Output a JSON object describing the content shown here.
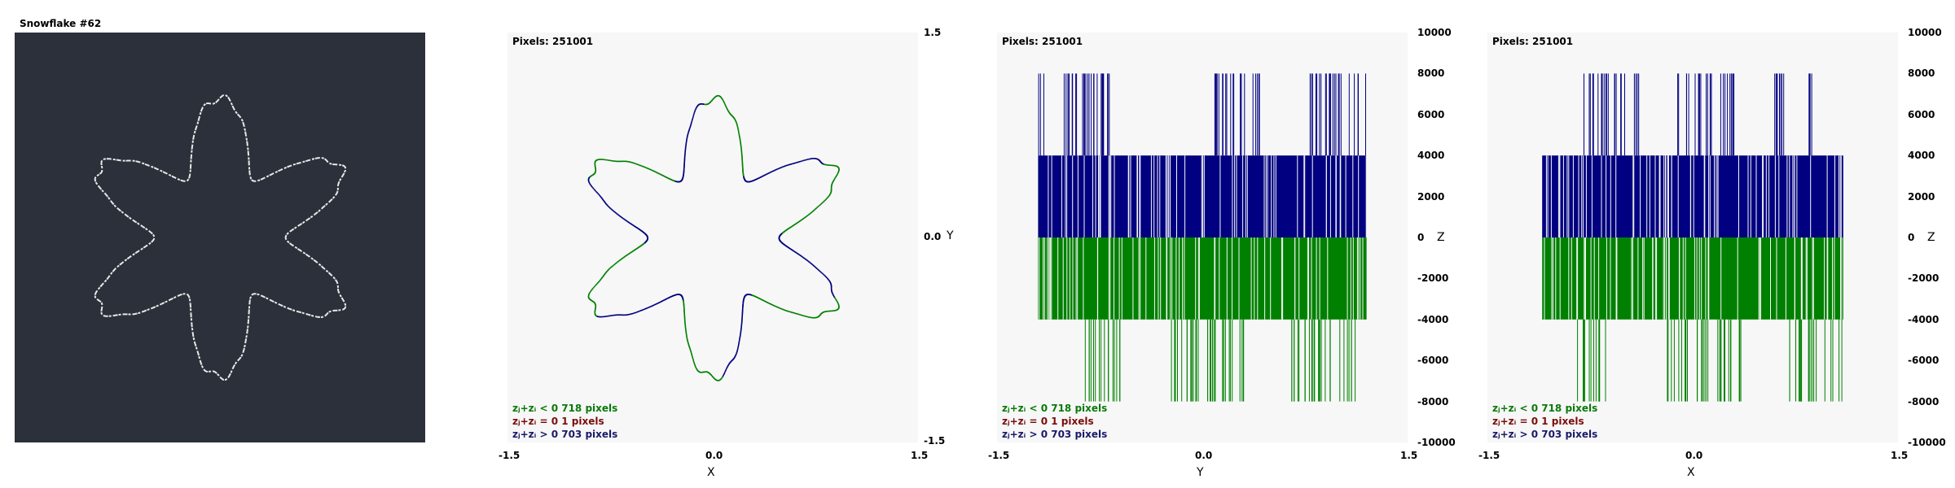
{
  "title": "Snowflake #62",
  "colors": {
    "dark_bg": "#2b303a",
    "plot_bg": "#f7f7f7",
    "positive": "#000080",
    "negative": "#008000",
    "curve_light": "#e8e8e8"
  },
  "plots": [
    {
      "id": "xy",
      "pixels_label": "Pixels: 251001",
      "xlabel": "X",
      "x_ticks": [
        "-1.5",
        "0.0",
        "1.5"
      ],
      "y_ticks": [
        "1.5",
        "0.0",
        "-1.5"
      ],
      "y_axis_name": "Y"
    },
    {
      "id": "yz",
      "pixels_label": "Pixels: 251001",
      "xlabel": "Y",
      "x_ticks": [
        "-1.5",
        "0.0",
        "1.5"
      ],
      "z_ticks": [
        "10000",
        "8000",
        "6000",
        "4000",
        "2000",
        "0",
        "-2000",
        "-4000",
        "-6000",
        "-8000",
        "-10000"
      ],
      "z_axis_name": "Z"
    },
    {
      "id": "xz",
      "pixels_label": "Pixels: 251001",
      "xlabel": "X",
      "x_ticks": [
        "-1.5",
        "0.0",
        "1.5"
      ],
      "z_ticks": [
        "10000",
        "8000",
        "6000",
        "4000",
        "2000",
        "0",
        "-2000",
        "-4000",
        "-6000",
        "-8000",
        "-10000"
      ],
      "z_axis_name": "Z"
    }
  ],
  "legend": {
    "neg": "zⱼ+zᵢ < 0  718 pixels",
    "zero": "zⱼ+zᵢ = 0  1 pixels",
    "pos": "zⱼ+zᵢ > 0  703 pixels"
  },
  "chart_data": {
    "type": "scatter",
    "title": "Snowflake #62",
    "pixels_total": 251001,
    "counts": {
      "negative": 718,
      "zero": 1,
      "positive": 703
    },
    "xy_range": [
      -1.5,
      1.5
    ],
    "z_range": [
      -10000,
      10000
    ],
    "curve": {
      "symmetry": 6,
      "base_radius": 1.0,
      "modulation": 0.36
    },
    "z_levels": {
      "positive": [
        4000,
        8000
      ],
      "negative": [
        -4000,
        -8000
      ]
    },
    "xz_bands": {
      "x_extent": [
        -1.1,
        1.1
      ],
      "high_positive_x": [
        [
          -0.8,
          -0.38
        ],
        [
          -0.12,
          0.3
        ],
        [
          0.55,
          0.7
        ],
        [
          0.82,
          0.88
        ]
      ],
      "high_negative_x": [
        [
          -0.85,
          -0.6
        ],
        [
          -0.2,
          0.35
        ],
        [
          0.7,
          1.1
        ]
      ]
    },
    "yz_bands": {
      "y_extent": [
        -1.2,
        1.2
      ],
      "high_positive_y": [
        [
          -1.2,
          -0.65
        ],
        [
          0.05,
          0.42
        ],
        [
          0.78,
          1.2
        ]
      ],
      "high_negative_y": [
        [
          -0.88,
          -0.6
        ],
        [
          -0.25,
          0.35
        ],
        [
          0.65,
          1.15
        ]
      ]
    },
    "grid": false
  }
}
